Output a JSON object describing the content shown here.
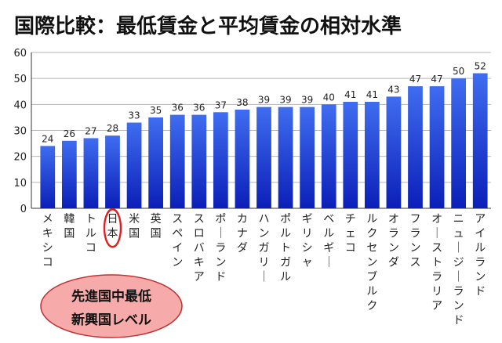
{
  "chart_data": {
    "type": "bar",
    "title": "国際比較：最低賃金と平均賃金の相対水準",
    "xlabel": "",
    "ylabel": "",
    "ylim": [
      0,
      60
    ],
    "yticks": [
      "0",
      "10",
      "20",
      "30",
      "40",
      "50",
      "60"
    ],
    "grid": true,
    "categories": [
      "メキシコ",
      "韓国",
      "トルコ",
      "日本",
      "米国",
      "英国",
      "スペイン",
      "スロバキア",
      "ポーランド",
      "カナダ",
      "ハンガリー",
      "ポルトガル",
      "ギリシャ",
      "ベルギー",
      "チェコ",
      "ルクセンブルク",
      "オランダ",
      "フランス",
      "オーストラリア",
      "ニュージーランド",
      "アイルランド"
    ],
    "values": [
      24,
      26,
      27,
      28,
      33,
      35,
      36,
      36,
      37,
      38,
      39,
      39,
      39,
      40,
      41,
      41,
      43,
      47,
      47,
      50,
      52
    ],
    "highlight_category": "日本",
    "annotation": {
      "lines": [
        "先進国中最低",
        "新興国レベル"
      ]
    },
    "colors": {
      "bar_top": "#3f6df0",
      "bar_bottom": "#0b1fb8",
      "highlight_circle": "#e02020",
      "callout_fill": "#f6aaaa",
      "callout_stroke": "#c03030"
    }
  }
}
